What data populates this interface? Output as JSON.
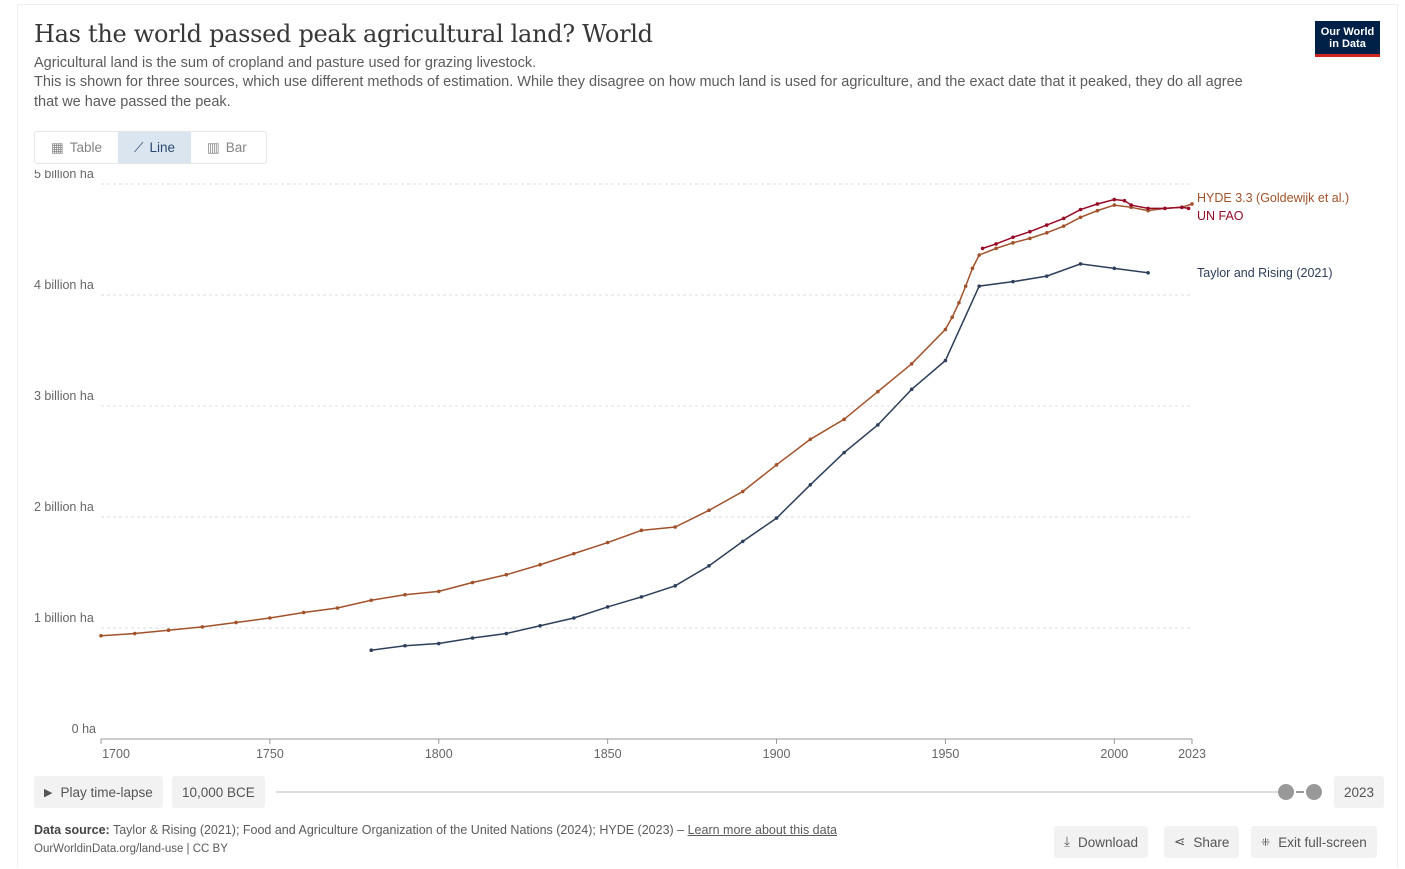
{
  "header": {
    "title": "Has the world passed peak agricultural land? World",
    "subtitle1": "Agricultural land is the sum of cropland and pasture used for grazing livestock.",
    "subtitle2": "This is shown for three sources, which use different methods of estimation. While they disagree on how much land is used for agriculture, and the exact date that it peaked, they do all agree",
    "subtitle3": "that we have passed the peak.",
    "logo": "Our World in Data"
  },
  "tabs": [
    {
      "label": "Table",
      "icon": "table-icon"
    },
    {
      "label": "Line",
      "icon": "line-chart-icon"
    },
    {
      "label": "Bar",
      "icon": "bar-chart-icon"
    }
  ],
  "chart_data": {
    "type": "line",
    "title": "Has the world passed peak agricultural land? World",
    "xlabel": "",
    "ylabel": "",
    "xlim": [
      1700,
      2023
    ],
    "ylim": [
      0,
      5
    ],
    "grid": true,
    "legend_placement": "right (inline labels)",
    "yticks": [
      {
        "v": 0,
        "label": "0 ha"
      },
      {
        "v": 1,
        "label": "1 billion ha"
      },
      {
        "v": 2,
        "label": "2 billion ha"
      },
      {
        "v": 3,
        "label": "3 billion ha"
      },
      {
        "v": 4,
        "label": "4 billion ha"
      },
      {
        "v": 5,
        "label": "5 billion ha"
      }
    ],
    "xticks": [
      1700,
      1750,
      1800,
      1850,
      1900,
      1950,
      2000,
      2023
    ],
    "series": [
      {
        "name": "HYDE 3.3 (Goldewijk et al.)",
        "color": "#a2522b",
        "x": [
          1700,
          1710,
          1720,
          1730,
          1740,
          1750,
          1760,
          1770,
          1780,
          1790,
          1800,
          1810,
          1820,
          1830,
          1840,
          1850,
          1860,
          1870,
          1880,
          1890,
          1900,
          1910,
          1920,
          1930,
          1940,
          1950,
          1952,
          1954,
          1956,
          1958,
          1960,
          1965,
          1970,
          1975,
          1980,
          1985,
          1990,
          1995,
          2000,
          2005,
          2010,
          2015,
          2020,
          2023
        ],
        "y": [
          0.93,
          0.95,
          0.98,
          1.01,
          1.05,
          1.09,
          1.14,
          1.18,
          1.25,
          1.3,
          1.33,
          1.41,
          1.48,
          1.57,
          1.67,
          1.77,
          1.88,
          1.91,
          2.06,
          2.23,
          2.47,
          2.7,
          2.88,
          3.13,
          3.38,
          3.69,
          3.8,
          3.93,
          4.08,
          4.24,
          4.36,
          4.42,
          4.47,
          4.51,
          4.56,
          4.62,
          4.7,
          4.76,
          4.81,
          4.79,
          4.76,
          4.78,
          4.79,
          4.82
        ]
      },
      {
        "name": "UN FAO",
        "color": "#970a26",
        "x": [
          1961,
          1965,
          1970,
          1975,
          1980,
          1985,
          1990,
          1995,
          2000,
          2003,
          2005,
          2010,
          2015,
          2020,
          2022
        ],
        "y": [
          4.42,
          4.46,
          4.52,
          4.57,
          4.63,
          4.69,
          4.77,
          4.82,
          4.86,
          4.85,
          4.81,
          4.78,
          4.78,
          4.79,
          4.78
        ]
      },
      {
        "name": "Taylor and Rising (2021)",
        "color": "#2d3f5a",
        "x": [
          1780,
          1790,
          1800,
          1810,
          1820,
          1830,
          1840,
          1850,
          1860,
          1870,
          1880,
          1890,
          1900,
          1910,
          1920,
          1930,
          1940,
          1950,
          1960,
          1970,
          1980,
          1990,
          2000,
          2010
        ],
        "y": [
          0.8,
          0.84,
          0.86,
          0.91,
          0.95,
          1.02,
          1.09,
          1.19,
          1.28,
          1.38,
          1.56,
          1.78,
          1.99,
          2.29,
          2.58,
          2.83,
          3.15,
          3.41,
          4.08,
          4.12,
          4.17,
          4.28,
          4.24,
          4.2
        ]
      }
    ]
  },
  "controls": {
    "play": "Play time-lapse",
    "start": "10,000 BCE",
    "end": "2023"
  },
  "footer": {
    "source_label": "Data source:",
    "source_text": " Taylor & Rising (2021); Food and Agriculture Organization of the United Nations (2024); HYDE (2023) – ",
    "learn_more": "Learn more about this data",
    "url": "OurWorldinData.org/land-use | CC BY",
    "download": "Download",
    "share": "Share",
    "exit": "Exit full-screen"
  }
}
